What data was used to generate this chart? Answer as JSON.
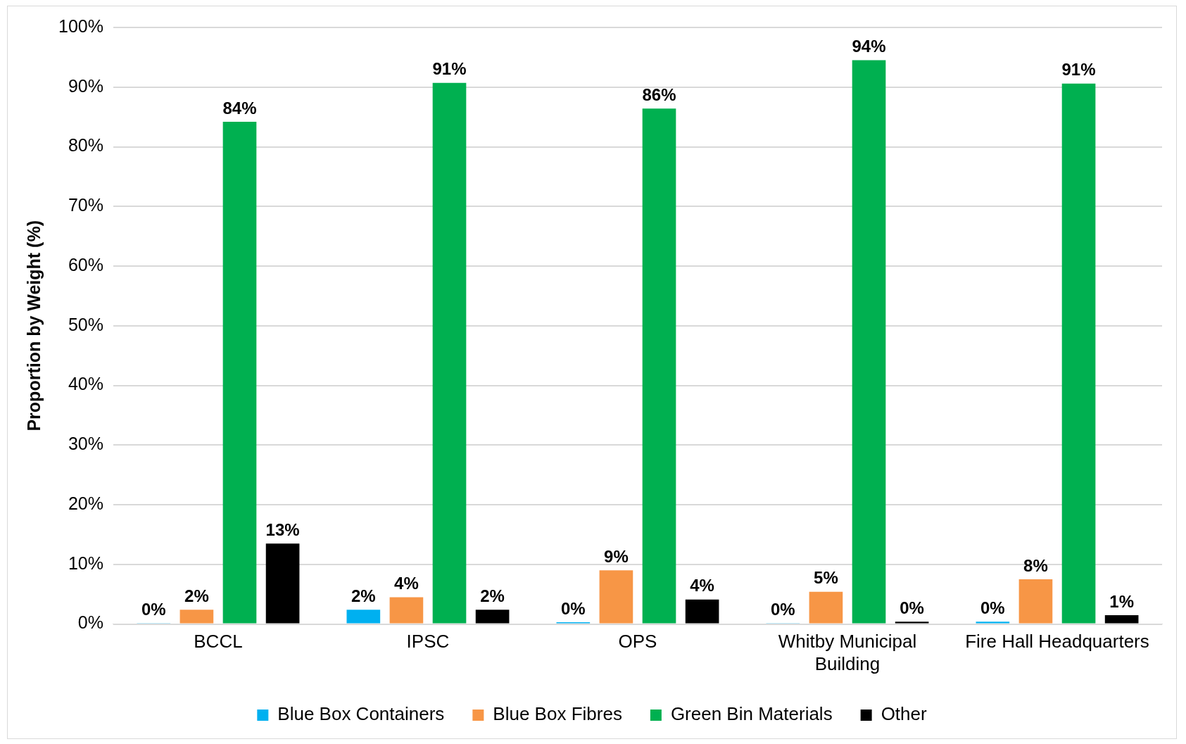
{
  "chart_data": {
    "type": "bar",
    "ylabel": "Proportion by Weight (%)",
    "categories": [
      "BCCL",
      "IPSC",
      "OPS",
      "Whitby Municipal Building",
      "Fire Hall Headquarters"
    ],
    "series": [
      {
        "name": "Blue Box Containers",
        "color": "#00b0f0",
        "values": [
          0.1,
          2.4,
          0.3,
          0.1,
          0.4
        ],
        "value_labels": [
          "0%",
          "2%",
          "0%",
          "0%",
          "0%"
        ]
      },
      {
        "name": "Blue Box Fibres",
        "color": "#f79646",
        "values": [
          2.4,
          4.5,
          9.0,
          5.4,
          7.5
        ],
        "value_labels": [
          "2%",
          "4%",
          "9%",
          "5%",
          "8%"
        ]
      },
      {
        "name": "Green Bin Materials",
        "color": "#00b050",
        "values": [
          84.2,
          90.7,
          86.4,
          94.5,
          90.6
        ],
        "value_labels": [
          "84%",
          "91%",
          "86%",
          "94%",
          "91%"
        ]
      },
      {
        "name": "Other",
        "color": "#000000",
        "values": [
          13.5,
          2.4,
          4.1,
          0.4,
          1.5
        ],
        "value_labels": [
          "13%",
          "2%",
          "4%",
          "0%",
          "1%"
        ]
      }
    ],
    "ylim": [
      0,
      100
    ],
    "yticks": [
      {
        "value": 0,
        "label": "0%"
      },
      {
        "value": 10,
        "label": "10%"
      },
      {
        "value": 20,
        "label": "20%"
      },
      {
        "value": 30,
        "label": "30%"
      },
      {
        "value": 40,
        "label": "40%"
      },
      {
        "value": 50,
        "label": "50%"
      },
      {
        "value": 60,
        "label": "60%"
      },
      {
        "value": 70,
        "label": "70%"
      },
      {
        "value": 80,
        "label": "80%"
      },
      {
        "value": 90,
        "label": "90%"
      },
      {
        "value": 100,
        "label": "100%"
      }
    ],
    "grid": "y",
    "legend": "bottom"
  }
}
